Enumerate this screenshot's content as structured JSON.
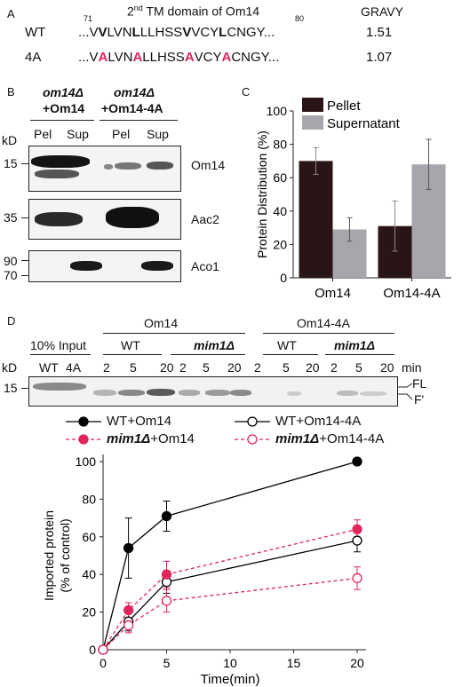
{
  "panel_a": {
    "label": "A",
    "header_pre": "2",
    "header_sup": "nd",
    "header_post": " TM domain of Om14",
    "gravy_header": "GRAVY",
    "num_start": "71",
    "num_end": "80",
    "wt": {
      "label": "WT",
      "segments": [
        "...V",
        "V",
        "LVN",
        "L",
        "LLHSS",
        "V",
        "VCY",
        "L",
        "CNGY..."
      ],
      "gravy": "1.51"
    },
    "mut": {
      "label": "4A",
      "segments": [
        "...V",
        "A",
        "LVN",
        "A",
        "LLHSS",
        "A",
        "VCY",
        "A",
        "CNGY..."
      ],
      "gravy": "1.07"
    }
  },
  "panel_b": {
    "label": "B",
    "group1_line1": "om14Δ",
    "group1_line2": "+Om14",
    "group2_line1": "om14Δ",
    "group2_line2": "+Om14-4A",
    "lanes": [
      "Pel",
      "Sup",
      "Pel",
      "Sup"
    ],
    "kd": "kD",
    "blots": [
      {
        "marker": "15",
        "name": "Om14"
      },
      {
        "marker": "35",
        "name": "Aac2"
      },
      {
        "marker1": "90",
        "marker2": "70",
        "name": "Aco1"
      }
    ]
  },
  "panel_c": {
    "label": "C",
    "ylabel": "Protein Distribution (%)",
    "chart_data": {
      "type": "bar",
      "categories": [
        "Om14",
        "Om14-4A"
      ],
      "series": [
        {
          "name": "Pellet",
          "values": [
            70,
            31
          ],
          "errors": [
            8,
            15
          ],
          "color": "#2a1516"
        },
        {
          "name": "Supernatant",
          "values": [
            29,
            68
          ],
          "errors": [
            7,
            15
          ],
          "color": "#a7a6ad"
        }
      ],
      "ylim": [
        0,
        100
      ],
      "yticks": [
        0,
        20,
        40,
        60,
        80,
        100
      ]
    }
  },
  "panel_d": {
    "label": "D",
    "group_om14": "Om14",
    "group_om14_4a": "Om14-4A",
    "input_label": "10% Input",
    "input_lanes": [
      "WT",
      "4A"
    ],
    "sub_wt": "WT",
    "sub_mim": "mim1Δ",
    "time_lanes": [
      "2",
      "5",
      "20"
    ],
    "min_label": "min",
    "kd": "kD",
    "marker": "15",
    "fl": "FL",
    "fprime": "F'",
    "legend": [
      {
        "pre": "",
        "it": "",
        "post": "WT+Om14"
      },
      {
        "pre": "",
        "it": "",
        "post": "WT+Om14-4A"
      },
      {
        "pre": "",
        "it": "mim1Δ",
        "post": "+Om14"
      },
      {
        "pre": "",
        "it": "mim1Δ",
        "post": "+Om14-4A"
      }
    ],
    "ylabel1": "Imported protein",
    "ylabel2": "(% of control)",
    "xlabel": "Time(min)",
    "chart_data": {
      "type": "line",
      "x": [
        0,
        2,
        5,
        20
      ],
      "xlim": [
        0,
        20
      ],
      "xticks": [
        0,
        5,
        10,
        15,
        20
      ],
      "ylim": [
        0,
        100
      ],
      "yticks": [
        0,
        20,
        40,
        60,
        80,
        100
      ],
      "series": [
        {
          "name": "WT+Om14",
          "values": [
            0,
            54,
            71,
            100
          ],
          "errors": [
            0,
            16,
            8,
            0
          ],
          "color": "#000000",
          "dashed": false,
          "filled": true
        },
        {
          "name": "WT+Om14-4A",
          "values": [
            0,
            15,
            36,
            58
          ],
          "errors": [
            0,
            5,
            6,
            6
          ],
          "color": "#000000",
          "dashed": false,
          "filled": false
        },
        {
          "name": "mim1Δ+Om14",
          "values": [
            0,
            21,
            40,
            64
          ],
          "errors": [
            0,
            4,
            7,
            5
          ],
          "color": "#e0265a",
          "dashed": true,
          "filled": true
        },
        {
          "name": "mim1Δ+Om14-4A",
          "values": [
            0,
            13,
            26,
            38
          ],
          "errors": [
            0,
            4,
            6,
            6
          ],
          "color": "#e0265a",
          "dashed": true,
          "filled": false
        }
      ]
    }
  }
}
